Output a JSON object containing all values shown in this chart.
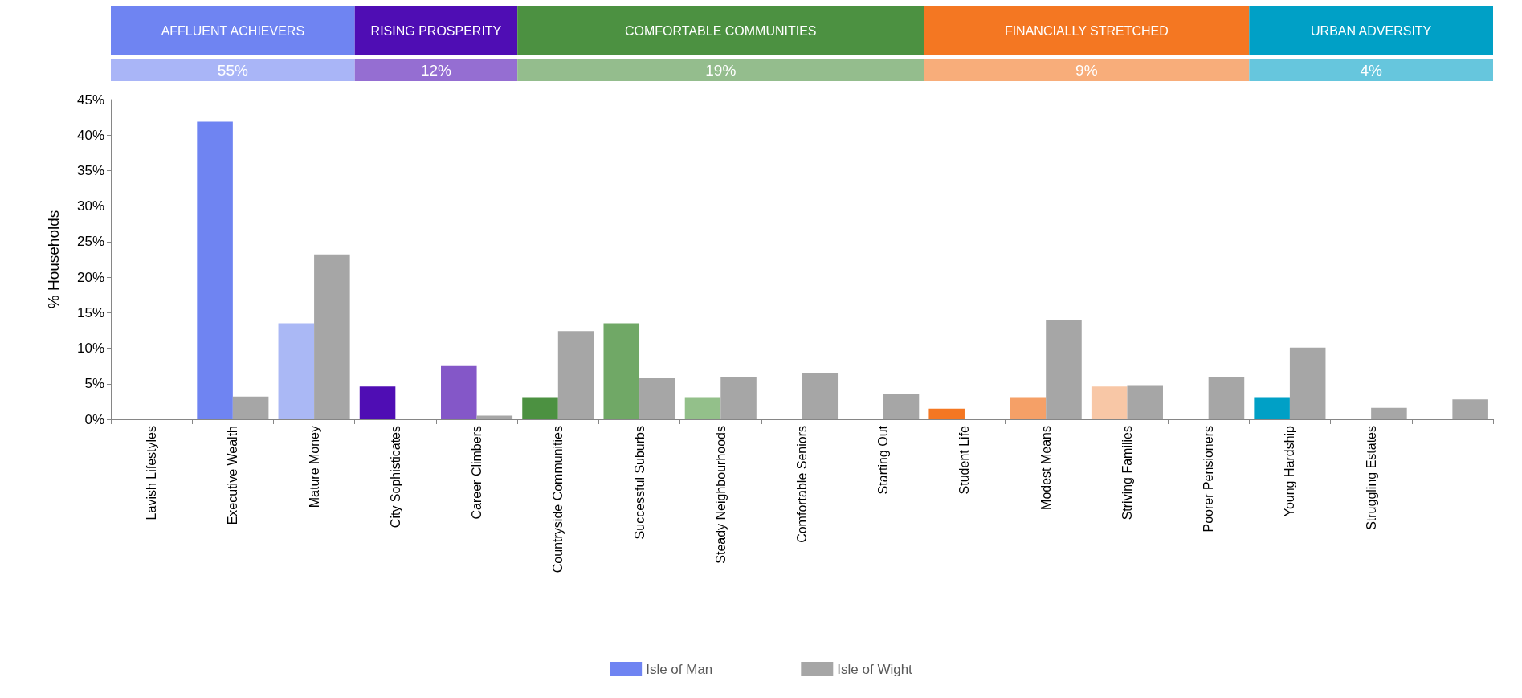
{
  "chart_data": {
    "type": "bar",
    "ylabel": "% Households",
    "categories": [
      "Lavish Lifestyles",
      "Executive Wealth",
      "Mature Money",
      "City Sophisticates",
      "Career Climbers",
      "Countryside Communities",
      "Successful Suburbs",
      "Steady Neighbourhoods",
      "Comfortable Seniors",
      "Starting Out",
      "Student Life",
      "Modest Means",
      "Striving Families",
      "Poorer Pensioners",
      "Young Hardship",
      "Struggling Estates",
      null
    ],
    "series": [
      {
        "name": "Isle of Man",
        "color": "#6f84f2",
        "colors": [
          "#6f84f2",
          "#6f84f2",
          "#aab8f5",
          "#4f0db4",
          "#8457c8",
          "#4c9141",
          "#70a866",
          "#93c08a",
          "#93c08a",
          "#93c08a",
          "#f47722",
          "#f5a067",
          "#f8c7a6",
          "#f8c7a6",
          "#00a0c6",
          "#00a0c6",
          "#00a0c6"
        ],
        "values": [
          null,
          41.9,
          13.5,
          4.6,
          7.5,
          3.1,
          13.5,
          3.1,
          null,
          null,
          1.5,
          3.1,
          4.6,
          null,
          3.1,
          null,
          null
        ]
      },
      {
        "name": "Isle of Wight",
        "color": "#a6a6a6",
        "values": [
          null,
          3.2,
          23.2,
          null,
          0.5,
          12.4,
          5.8,
          6.0,
          6.5,
          3.6,
          null,
          14.0,
          4.8,
          6.0,
          10.1,
          1.6,
          2.8
        ]
      }
    ],
    "annotations": [
      "AFFLUENT ACHIEVERS",
      "RISING PROSPERITY",
      "COMFORTABLE COMMUNITIES",
      "FINANCIALLY STRETCHED",
      "URBAN ADVERSITY",
      "55%",
      "12%",
      "19%",
      "9%",
      "4%"
    ],
    "ylim": [
      0,
      45
    ],
    "yticks": [
      {
        "value": 0,
        "label": "0%"
      },
      {
        "value": 5,
        "label": "5%"
      },
      {
        "value": 10,
        "label": "10%"
      },
      {
        "value": 15,
        "label": "15%"
      },
      {
        "value": 20,
        "label": "20%"
      },
      {
        "value": 25,
        "label": "25%"
      },
      {
        "value": 30,
        "label": "30%"
      },
      {
        "value": 35,
        "label": "35%"
      },
      {
        "value": 40,
        "label": "40%"
      },
      {
        "value": 45,
        "label": "45%"
      }
    ],
    "grid": false,
    "legend": "bottom"
  }
}
